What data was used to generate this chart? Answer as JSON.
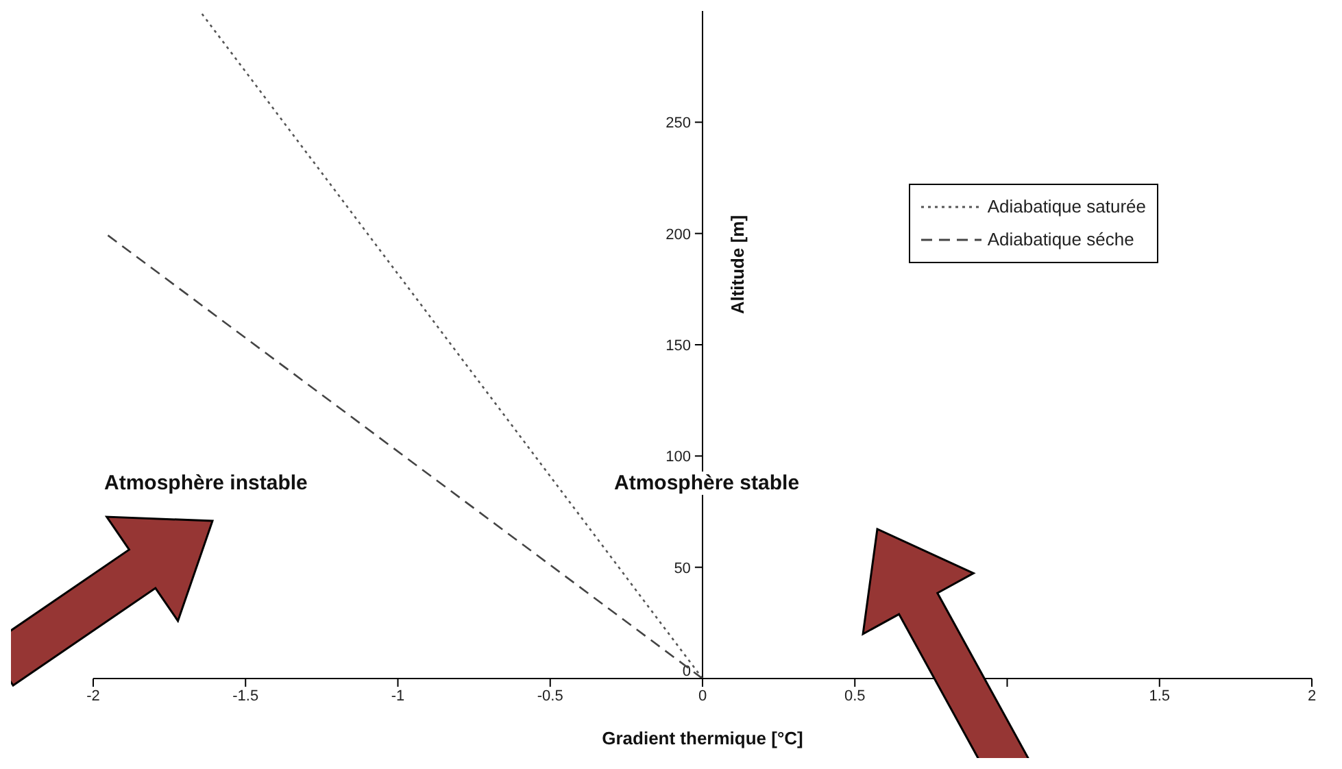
{
  "chart_data": {
    "type": "line",
    "xlabel": "Gradient thermique [°C]",
    "ylabel": "Altitude [m]",
    "xlim": [
      -2,
      2
    ],
    "xticks": [
      -2,
      -1.5,
      -1,
      -0.5,
      0,
      0.5,
      {
        "value": 1,
        "label": null
      },
      1.5,
      2
    ],
    "ylim": [
      0,
      300
    ],
    "yticks": [
      0,
      50,
      100,
      150,
      200,
      250
    ],
    "legend": "top right",
    "marker": "none",
    "annotations": [
      "Atmosphère instable",
      "Atmosphère stable"
    ],
    "series": [
      {
        "name": "Adiabatique saturée",
        "color": "#555555",
        "line_style": "dotted",
        "x": [
          0,
          -1.65
        ],
        "values": [
          0,
          300
        ]
      },
      {
        "name": "Adiabatique séche",
        "color": "#444444",
        "line_style": "dashed",
        "x": [
          0,
          -1.96
        ],
        "values": [
          0,
          200
        ]
      }
    ]
  }
}
